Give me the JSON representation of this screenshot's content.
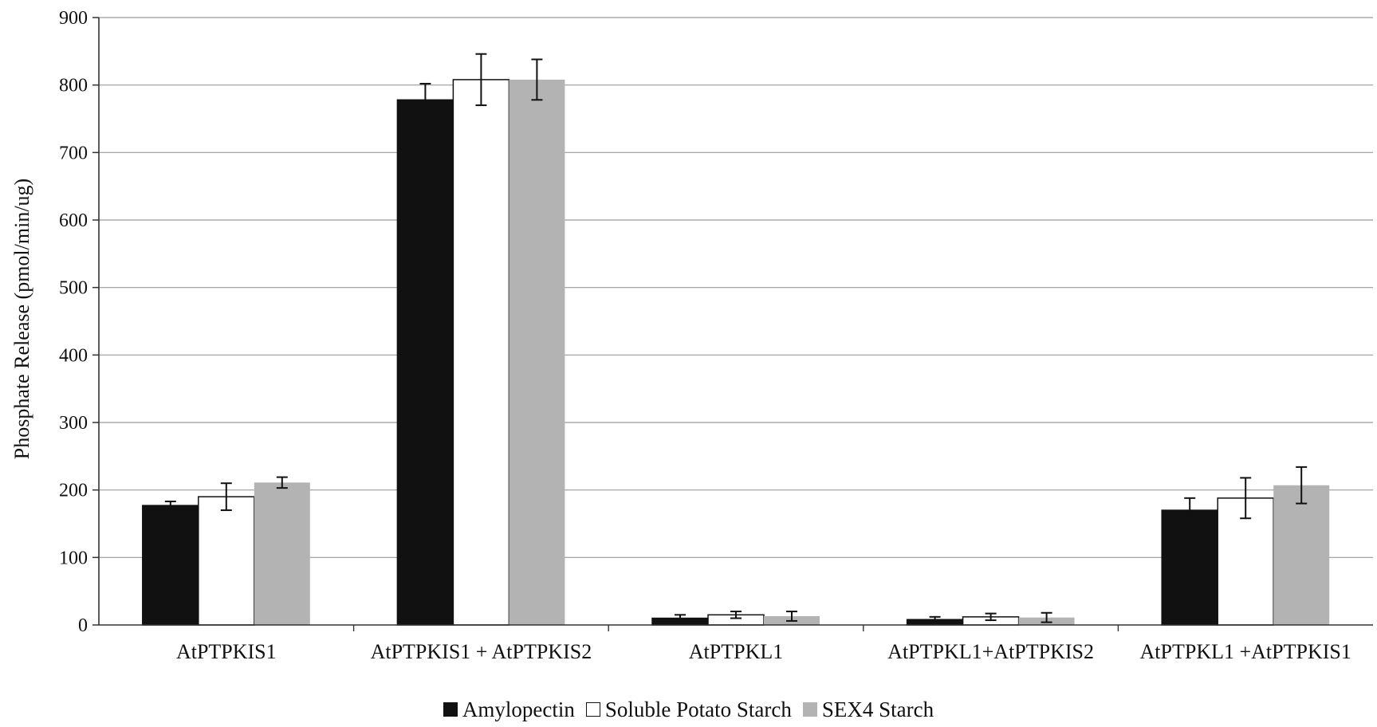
{
  "chart_data": {
    "type": "bar",
    "title": "",
    "xlabel": "",
    "ylabel": "Phosphate Release (pmol/min/ug)",
    "ylim": [
      0,
      900
    ],
    "yticks": [
      "0",
      "100",
      "200",
      "300",
      "400",
      "500",
      "600",
      "700",
      "800",
      "900"
    ],
    "grid": true,
    "legend_position": "bottom",
    "categories": [
      "AtPTPKIS1",
      "AtPTPKIS1 + AtPTPKIS2",
      "AtPTPKL1",
      "AtPTPKL1+AtPTPKIS2",
      "AtPTPKL1 +AtPTPKIS1"
    ],
    "series": [
      {
        "name": "Amylopectin",
        "color": "#111111",
        "values": [
          177,
          778,
          10,
          8,
          170
        ],
        "errors": [
          6,
          24,
          5,
          4,
          18
        ]
      },
      {
        "name": "Soluble Potato Starch",
        "color": "#ffffff",
        "values": [
          190,
          808,
          15,
          12,
          188
        ],
        "errors": [
          20,
          38,
          5,
          5,
          30
        ]
      },
      {
        "name": "SEX4 Starch",
        "color": "#b3b3b3",
        "values": [
          211,
          808,
          13,
          11,
          207
        ],
        "errors": [
          8,
          30,
          7,
          7,
          27
        ]
      }
    ]
  }
}
